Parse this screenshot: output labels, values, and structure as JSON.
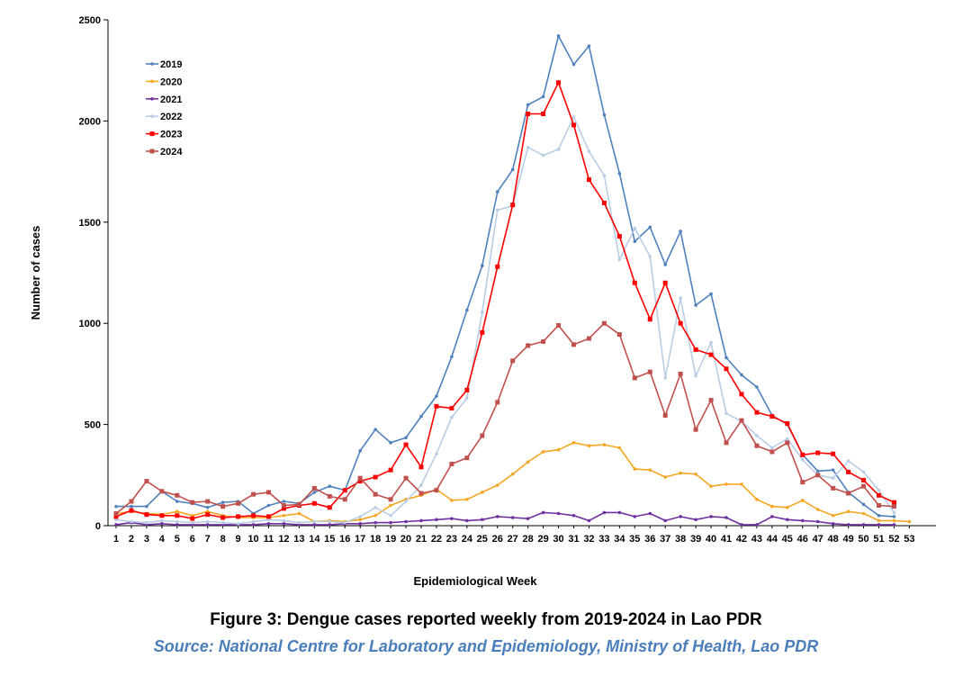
{
  "chart_data": {
    "type": "line",
    "title": "",
    "xlabel": "Epidemiological Week",
    "ylabel": "Number of cases",
    "ylim": [
      0,
      2500
    ],
    "yticks": [
      0,
      500,
      1000,
      1500,
      2000,
      2500
    ],
    "categories": [
      "1",
      "2",
      "3",
      "4",
      "5",
      "6",
      "7",
      "8",
      "9",
      "10",
      "11",
      "12",
      "13",
      "14",
      "15",
      "16",
      "17",
      "18",
      "19",
      "20",
      "21",
      "22",
      "23",
      "24",
      "25",
      "26",
      "27",
      "28",
      "29",
      "30",
      "31",
      "32",
      "33",
      "34",
      "35",
      "36",
      "37",
      "38",
      "39",
      "40",
      "41",
      "42",
      "43",
      "44",
      "45",
      "46",
      "47",
      "48",
      "49",
      "50",
      "51",
      "52",
      "53"
    ],
    "legend_position": "top-left",
    "series": [
      {
        "name": "2019",
        "color": "#4f81bd",
        "marker": "dot",
        "values": [
          95,
          95,
          95,
          170,
          120,
          110,
          90,
          115,
          120,
          60,
          100,
          120,
          110,
          165,
          195,
          175,
          370,
          475,
          410,
          435,
          540,
          640,
          835,
          1065,
          1285,
          1650,
          1760,
          2080,
          2120,
          2420,
          2280,
          2370,
          2030,
          1740,
          1405,
          1475,
          1290,
          1455,
          1090,
          1145,
          830,
          745,
          685,
          545,
          500,
          350,
          270,
          275,
          165,
          105,
          50,
          45,
          null
        ]
      },
      {
        "name": "2020",
        "color": "#f5a623",
        "marker": "dot",
        "values": [
          60,
          70,
          60,
          55,
          70,
          50,
          70,
          50,
          40,
          40,
          40,
          50,
          60,
          20,
          25,
          20,
          30,
          50,
          100,
          130,
          150,
          180,
          125,
          130,
          165,
          200,
          255,
          315,
          365,
          375,
          410,
          395,
          400,
          385,
          280,
          275,
          240,
          260,
          255,
          195,
          205,
          205,
          130,
          95,
          90,
          125,
          80,
          50,
          70,
          60,
          25,
          25,
          20
        ]
      },
      {
        "name": "2021",
        "color": "#7030a0",
        "marker": "dot",
        "values": [
          5,
          15,
          5,
          10,
          5,
          5,
          5,
          5,
          5,
          5,
          10,
          10,
          5,
          5,
          5,
          10,
          10,
          15,
          15,
          20,
          25,
          30,
          35,
          25,
          30,
          45,
          40,
          35,
          65,
          60,
          50,
          25,
          65,
          65,
          45,
          60,
          25,
          45,
          30,
          45,
          40,
          5,
          5,
          45,
          30,
          25,
          20,
          10,
          5,
          5,
          5,
          5,
          null
        ]
      },
      {
        "name": "2022",
        "color": "#b9cde5",
        "marker": "dot",
        "values": [
          30,
          20,
          15,
          25,
          20,
          15,
          20,
          15,
          10,
          20,
          30,
          25,
          15,
          20,
          20,
          15,
          45,
          90,
          50,
          120,
          200,
          355,
          535,
          630,
          1055,
          1560,
          1580,
          1870,
          1830,
          1860,
          2020,
          1850,
          1730,
          1315,
          1470,
          1330,
          730,
          1125,
          740,
          905,
          555,
          515,
          445,
          385,
          430,
          325,
          250,
          235,
          320,
          265,
          175,
          65,
          null
        ]
      },
      {
        "name": "2023",
        "color": "#ff0000",
        "marker": "square",
        "values": [
          45,
          75,
          55,
          50,
          50,
          35,
          55,
          40,
          45,
          50,
          45,
          85,
          100,
          110,
          90,
          175,
          220,
          240,
          275,
          400,
          290,
          590,
          580,
          670,
          955,
          1280,
          1585,
          2035,
          2035,
          2190,
          1980,
          1710,
          1595,
          1430,
          1200,
          1020,
          1200,
          1000,
          870,
          845,
          775,
          650,
          560,
          540,
          505,
          350,
          360,
          355,
          265,
          225,
          150,
          115,
          null
        ]
      },
      {
        "name": "2024",
        "color": "#c0504d",
        "marker": "square",
        "values": [
          60,
          120,
          220,
          170,
          150,
          115,
          120,
          95,
          110,
          155,
          165,
          100,
          105,
          185,
          145,
          130,
          235,
          155,
          130,
          235,
          160,
          175,
          305,
          335,
          445,
          610,
          815,
          890,
          910,
          990,
          895,
          925,
          1000,
          945,
          730,
          760,
          545,
          750,
          475,
          620,
          410,
          520,
          395,
          365,
          410,
          215,
          250,
          185,
          160,
          195,
          100,
          95,
          null
        ]
      }
    ]
  },
  "caption": {
    "title": "Figure 3: Dengue cases reported weekly from 2019-2024 in Lao PDR",
    "source": "Source: National Centre for Laboratory and Epidemiology, Ministry of Health, Lao PDR"
  }
}
